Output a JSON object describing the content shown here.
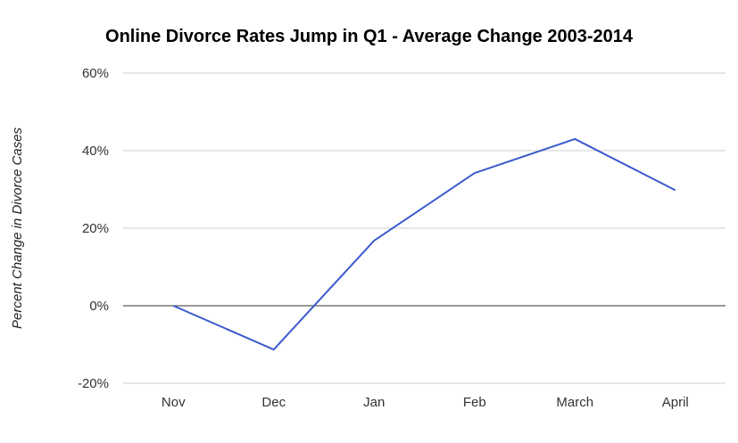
{
  "chart_data": {
    "type": "line",
    "title": "Online Divorce Rates Jump in Q1 - Average Change 2003-2014",
    "xlabel": "",
    "ylabel": "Percent Change in Divorce Cases",
    "categories": [
      "Nov",
      "Dec",
      "Jan",
      "Feb",
      "March",
      "April"
    ],
    "series": [
      {
        "values": [
          0,
          -11.3,
          16.8,
          34.2,
          43.0,
          29.8
        ],
        "color": "#3b5bcc"
      }
    ],
    "ylim": [
      -20,
      60
    ],
    "yticks": [
      -20,
      0,
      20,
      40,
      60
    ],
    "ytick_labels": [
      "-20%",
      "0%",
      "20%",
      "40%",
      "60%"
    ],
    "grid": true,
    "legend": "none",
    "colors": {
      "line": "#3b5bcc",
      "grid": "#cccccc",
      "zero_line": "#333333"
    }
  }
}
